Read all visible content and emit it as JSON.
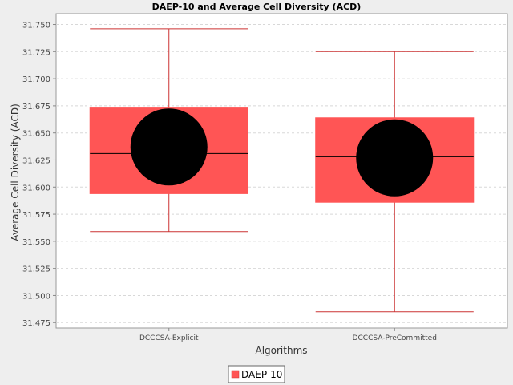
{
  "chart_data": {
    "type": "boxplot",
    "title": "DAEP-10 and Average Cell Diversity (ACD)",
    "xlabel": "Algorithms",
    "ylabel": "Average Cell Diversity (ACD)",
    "ylim": [
      31.47,
      31.76
    ],
    "yticks": [
      "31.475",
      "31.500",
      "31.525",
      "31.550",
      "31.575",
      "31.600",
      "31.625",
      "31.650",
      "31.675",
      "31.700",
      "31.725",
      "31.750"
    ],
    "grid": true,
    "legend": "bottom-center",
    "series": [
      {
        "name": "DAEP-10",
        "color": "#ff5555",
        "categories": [
          "DCCCSA-Explicit",
          "DCCCSA-PreCommitted"
        ],
        "boxes": [
          {
            "category": "DCCCSA-Explicit",
            "min": 31.559,
            "q1": 31.594,
            "median": 31.631,
            "q3": 31.673,
            "max": 31.746,
            "mean": 31.637
          },
          {
            "category": "DCCCSA-PreCommitted",
            "min": 31.485,
            "q1": 31.586,
            "median": 31.628,
            "q3": 31.664,
            "max": 31.725,
            "mean": 31.627
          }
        ]
      }
    ]
  },
  "legend_label": "DAEP-10"
}
